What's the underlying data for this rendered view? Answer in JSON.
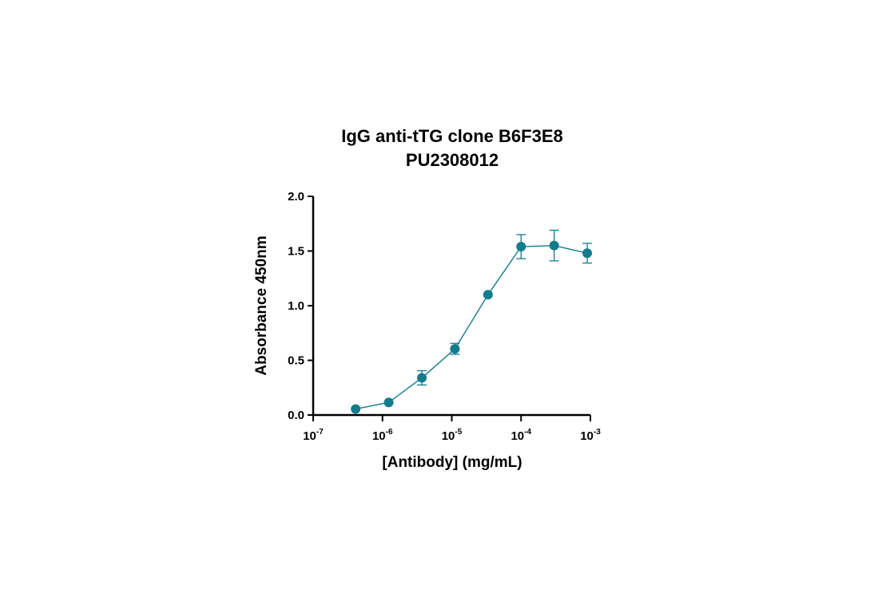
{
  "chart_data": {
    "type": "scatter",
    "title": [
      "IgG anti-tTG clone B6F3E8",
      "PU2308012"
    ],
    "xlabel": "[Antibody] (mg/mL)",
    "ylabel": "Absorbance 450nm",
    "xscale": "log",
    "xlim": [
      1e-07,
      0.001
    ],
    "ylim": [
      0,
      2.0
    ],
    "x_ticks": [
      {
        "value": 1e-07,
        "base": "10",
        "exp": "-7"
      },
      {
        "value": 1e-06,
        "base": "10",
        "exp": "-6"
      },
      {
        "value": 1e-05,
        "base": "10",
        "exp": "-5"
      },
      {
        "value": 0.0001,
        "base": "10",
        "exp": "-4"
      },
      {
        "value": 0.001,
        "base": "10",
        "exp": "-3"
      }
    ],
    "y_ticks": [
      {
        "value": 0.0,
        "label": "0.0"
      },
      {
        "value": 0.5,
        "label": "0.5"
      },
      {
        "value": 1.0,
        "label": "1.0"
      },
      {
        "value": 1.5,
        "label": "1.5"
      },
      {
        "value": 2.0,
        "label": "2.0"
      }
    ],
    "grid": false,
    "series": [
      {
        "color": "#147c8c",
        "points": [
          {
            "x": 4.1e-07,
            "y": 0.055,
            "err": 0.0
          },
          {
            "x": 1.23e-06,
            "y": 0.115,
            "err": 0.0
          },
          {
            "x": 3.7e-06,
            "y": 0.34,
            "err": 0.065
          },
          {
            "x": 1.11e-05,
            "y": 0.605,
            "err": 0.05
          },
          {
            "x": 3.33e-05,
            "y": 1.1,
            "err": 0.0
          },
          {
            "x": 0.0001,
            "y": 1.54,
            "err": 0.11
          },
          {
            "x": 0.0003,
            "y": 1.55,
            "err": 0.14
          },
          {
            "x": 0.0009,
            "y": 1.48,
            "err": 0.09
          }
        ]
      }
    ]
  }
}
